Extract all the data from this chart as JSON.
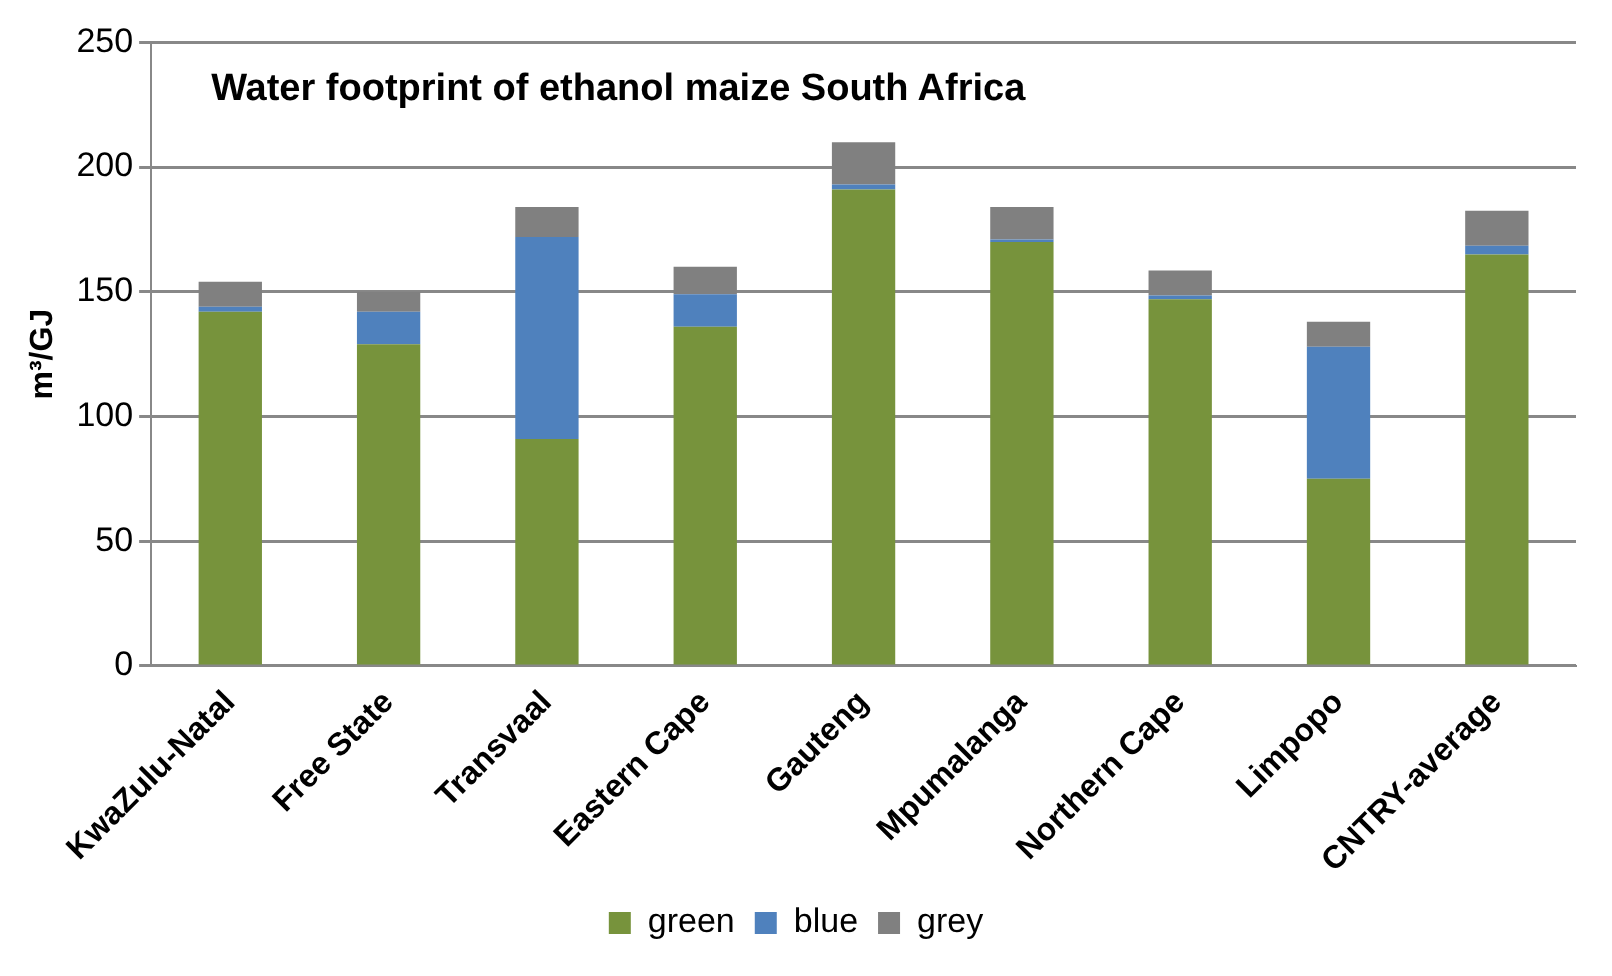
{
  "chart_data": {
    "type": "bar",
    "title": "Water footprint of ethanol maize South Africa",
    "ylabel": "m³/GJ",
    "categories": [
      "KwaZulu-Natal",
      "Free State",
      "Transvaal",
      "Eastern Cape",
      "Gauteng",
      "Mpumalanga",
      "Northern Cape",
      "Limpopo",
      "CNTRY-average"
    ],
    "series": [
      {
        "name": "green",
        "color": "#77933c",
        "values": [
          142,
          129,
          91,
          136,
          191,
          170,
          147,
          75,
          165
        ]
      },
      {
        "name": "blue",
        "color": "#4f81bd",
        "values": [
          2,
          13,
          81,
          13,
          2,
          1,
          1.5,
          53,
          3.5
        ]
      },
      {
        "name": "grey",
        "color": "#808080",
        "values": [
          10,
          8,
          12,
          11,
          17,
          13,
          10,
          10,
          14
        ]
      }
    ],
    "stacked": true,
    "ylim": [
      0,
      250
    ],
    "yticks": [
      0,
      50,
      100,
      150,
      200,
      250
    ],
    "grid": "y",
    "legend": "bottom"
  }
}
